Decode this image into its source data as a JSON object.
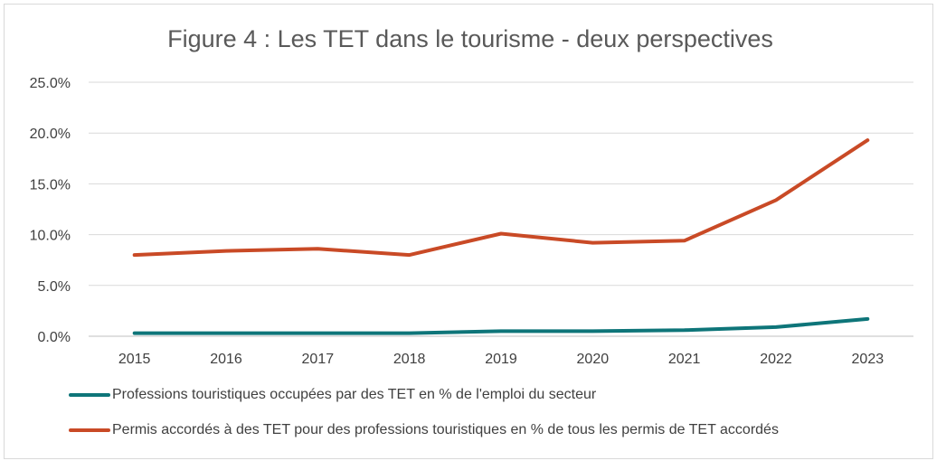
{
  "chart_data": {
    "type": "line",
    "title": "Figure 4 : Les TET dans le tourisme - deux perspectives",
    "xlabel": "",
    "ylabel": "",
    "categories": [
      "2015",
      "2016",
      "2017",
      "2018",
      "2019",
      "2020",
      "2021",
      "2022",
      "2023"
    ],
    "yticks": [
      "0.0%",
      "5.0%",
      "10.0%",
      "15.0%",
      "20.0%",
      "25.0%"
    ],
    "ylim": [
      0,
      25
    ],
    "grid": true,
    "legend_position": "bottom",
    "series": [
      {
        "name": "Professions touristiques occupées par des TET en % de l'emploi du secteur",
        "color": "#0e7579",
        "values": [
          0.3,
          0.3,
          0.3,
          0.3,
          0.5,
          0.5,
          0.6,
          0.9,
          1.7
        ]
      },
      {
        "name": "Permis accordés à des TET pour des professions touristiques en % de tous les permis de TET accordés",
        "color": "#c94a26",
        "values": [
          8.0,
          8.4,
          8.6,
          8.0,
          10.1,
          9.2,
          9.4,
          13.4,
          19.3
        ]
      }
    ]
  }
}
